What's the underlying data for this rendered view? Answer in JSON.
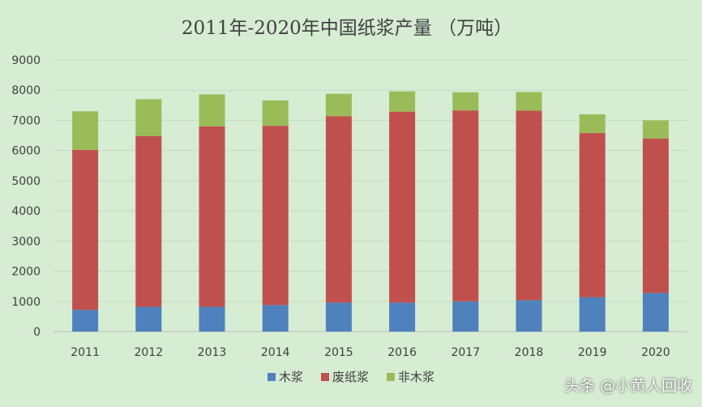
{
  "chart_data": {
    "type": "bar",
    "stacked": true,
    "title": "2011年-2020年中国纸浆产量 （万吨）",
    "categories": [
      "2011",
      "2012",
      "2013",
      "2014",
      "2015",
      "2016",
      "2017",
      "2018",
      "2019",
      "2020"
    ],
    "ylim": [
      0,
      9000
    ],
    "yticks": [
      0,
      1000,
      2000,
      3000,
      4000,
      5000,
      6000,
      7000,
      8000,
      9000
    ],
    "grid": true,
    "legend_position": "bottom",
    "series": [
      {
        "name": "木浆",
        "color": "#4f81bd",
        "values": [
          720,
          820,
          820,
          880,
          960,
          960,
          1000,
          1040,
          1140,
          1280
        ]
      },
      {
        "name": "废纸浆",
        "color": "#c0504d",
        "values": [
          5300,
          5660,
          5980,
          5940,
          6180,
          6330,
          6330,
          6280,
          5440,
          5120
        ]
      },
      {
        "name": "非木浆",
        "color": "#9bbb59",
        "values": [
          1280,
          1220,
          1060,
          840,
          740,
          670,
          600,
          620,
          620,
          600
        ]
      }
    ]
  },
  "watermark": "头条 @小黄人回收"
}
